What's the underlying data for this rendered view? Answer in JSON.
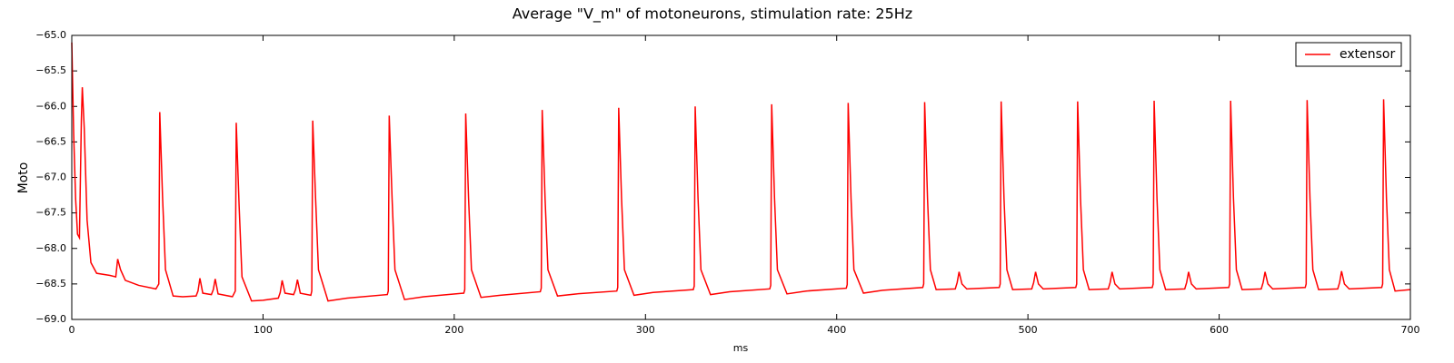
{
  "chart_data": {
    "type": "line",
    "title": "Average \"V_m\" of motoneurons, stimulation rate: 25Hz",
    "xlabel": "ms",
    "ylabel": "Moto",
    "xlim": [
      0,
      700
    ],
    "ylim": [
      -69,
      -65
    ],
    "xticks": [
      0,
      100,
      200,
      300,
      400,
      500,
      600,
      700
    ],
    "yticks": [
      {
        "value": -69,
        "label": "−69.0"
      },
      {
        "value": -68.5,
        "label": "−68.5"
      },
      {
        "value": -68,
        "label": "−68.0"
      },
      {
        "value": -67.5,
        "label": "−67.5"
      },
      {
        "value": -67,
        "label": "−67.0"
      },
      {
        "value": -66.5,
        "label": "−66.5"
      },
      {
        "value": -66,
        "label": "−66.0"
      },
      {
        "value": -65.5,
        "label": "−65.5"
      },
      {
        "value": -65,
        "label": "−65.0"
      }
    ],
    "legend": "upper right",
    "x": [
      0,
      1,
      2,
      3,
      4,
      5,
      5.5,
      6.5,
      8,
      10,
      13,
      20,
      23,
      24,
      25.5,
      28,
      35,
      44,
      45.5,
      46,
      47.5,
      49,
      53,
      58,
      65,
      66,
      67,
      68.5,
      73,
      74,
      75,
      76.5,
      84,
      85.5,
      86,
      87.5,
      89,
      94,
      100,
      108,
      109,
      110,
      111.5,
      116,
      117,
      118,
      119.5,
      125,
      125.5,
      126,
      127.5,
      129,
      134,
      144,
      165,
      165.5,
      166,
      167.5,
      169,
      174,
      184,
      205,
      205.5,
      206,
      207.5,
      209,
      214,
      224,
      245,
      245.5,
      246,
      247.5,
      249,
      254,
      264,
      285,
      285.5,
      286,
      287.5,
      289,
      294,
      304,
      325,
      325.5,
      326,
      327.5,
      329,
      334,
      344,
      365,
      365.5,
      366,
      367.5,
      369,
      374,
      384,
      405,
      405.5,
      406,
      407.5,
      409,
      414,
      424,
      445,
      445.5,
      446,
      447.5,
      449,
      452,
      462,
      463,
      464,
      465.5,
      468,
      485,
      485.5,
      486,
      487.5,
      489,
      492,
      502,
      503,
      504,
      505.5,
      508,
      525,
      525.5,
      526,
      527.5,
      529,
      532,
      542,
      543,
      544,
      545.5,
      548,
      565,
      565.5,
      566,
      567.5,
      569,
      572,
      582,
      583,
      584,
      585.5,
      588,
      605,
      605.5,
      606,
      607.5,
      609,
      612,
      622,
      623,
      624,
      625.5,
      628,
      645,
      645.5,
      646,
      647.5,
      649,
      652,
      662,
      663,
      664,
      665.5,
      668,
      685,
      685.5,
      686,
      687.5,
      689,
      692,
      700
    ],
    "series": [
      {
        "name": "extensor",
        "color": "#ff0000",
        "values": [
          -65.1,
          -66.4,
          -67.3,
          -67.8,
          -67.85,
          -66.2,
          -65.73,
          -66.3,
          -67.6,
          -68.2,
          -68.35,
          -68.38,
          -68.4,
          -68.15,
          -68.3,
          -68.45,
          -68.52,
          -68.57,
          -68.5,
          -66.08,
          -67.3,
          -68.3,
          -68.67,
          -68.68,
          -68.67,
          -68.6,
          -68.42,
          -68.63,
          -68.65,
          -68.58,
          -68.43,
          -68.64,
          -68.68,
          -68.6,
          -66.23,
          -67.4,
          -68.4,
          -68.74,
          -68.73,
          -68.7,
          -68.62,
          -68.45,
          -68.63,
          -68.65,
          -68.58,
          -68.44,
          -68.63,
          -68.66,
          -68.6,
          -66.2,
          -67.3,
          -68.3,
          -68.74,
          -68.7,
          -68.65,
          -68.6,
          -66.13,
          -67.3,
          -68.3,
          -68.72,
          -68.68,
          -68.63,
          -68.58,
          -66.1,
          -67.3,
          -68.3,
          -68.69,
          -68.66,
          -68.61,
          -68.56,
          -66.05,
          -67.3,
          -68.3,
          -68.67,
          -68.64,
          -68.6,
          -68.55,
          -66.02,
          -67.3,
          -68.3,
          -68.66,
          -68.62,
          -68.58,
          -68.53,
          -66.0,
          -67.3,
          -68.3,
          -68.65,
          -68.61,
          -68.57,
          -68.52,
          -65.97,
          -67.3,
          -68.3,
          -68.64,
          -68.6,
          -68.56,
          -68.51,
          -65.95,
          -67.3,
          -68.3,
          -68.63,
          -68.59,
          -68.55,
          -68.5,
          -65.94,
          -67.3,
          -68.3,
          -68.58,
          -68.57,
          -68.48,
          -68.33,
          -68.5,
          -68.57,
          -68.55,
          -68.5,
          -65.93,
          -67.3,
          -68.3,
          -68.58,
          -68.57,
          -68.48,
          -68.33,
          -68.5,
          -68.57,
          -68.55,
          -68.5,
          -65.93,
          -67.3,
          -68.3,
          -68.58,
          -68.57,
          -68.48,
          -68.33,
          -68.5,
          -68.57,
          -68.55,
          -68.5,
          -65.92,
          -67.3,
          -68.3,
          -68.58,
          -68.57,
          -68.48,
          -68.33,
          -68.5,
          -68.57,
          -68.55,
          -68.5,
          -65.92,
          -67.3,
          -68.3,
          -68.58,
          -68.57,
          -68.48,
          -68.33,
          -68.5,
          -68.57,
          -68.55,
          -68.5,
          -65.91,
          -67.3,
          -68.3,
          -68.58,
          -68.57,
          -68.48,
          -68.32,
          -68.5,
          -68.57,
          -68.55,
          -68.5,
          -65.9,
          -67.3,
          -68.3,
          -68.6,
          -68.58
        ]
      }
    ]
  }
}
